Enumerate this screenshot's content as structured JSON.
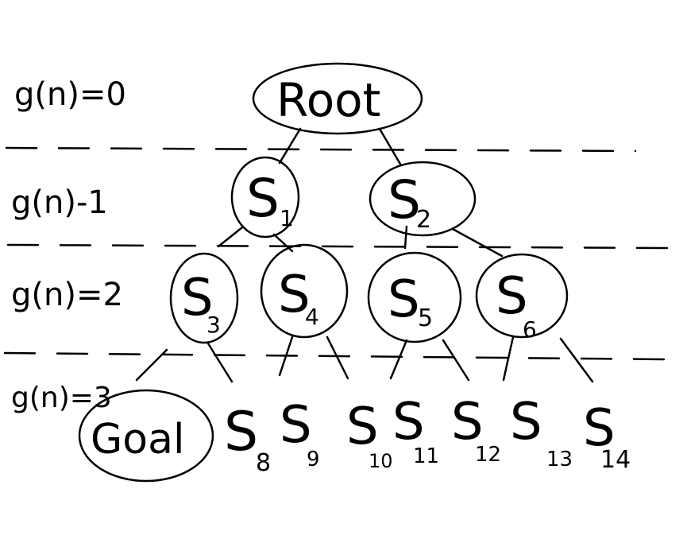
{
  "levels": [
    {
      "text": "g(n)=0"
    },
    {
      "text": "g(n)-1"
    },
    {
      "text": "g(n)=2"
    },
    {
      "text": "g(n)=3"
    }
  ],
  "nodes": {
    "root": {
      "label": "Root"
    },
    "s1": {
      "label": "S",
      "sub": "1"
    },
    "s2": {
      "label": "S",
      "sub": "2"
    },
    "s3": {
      "label": "S",
      "sub": "3"
    },
    "s4": {
      "label": "S",
      "sub": "4"
    },
    "s5": {
      "label": "S",
      "sub": "5"
    },
    "s6": {
      "label": "S",
      "sub": "6"
    },
    "goal": {
      "label": "Goal"
    },
    "s8": {
      "label": "S",
      "sub": "8"
    },
    "s9": {
      "label": "S",
      "sub": "9"
    },
    "s10": {
      "label": "S",
      "sub": "10"
    },
    "s11": {
      "label": "S",
      "sub": "11"
    },
    "s12": {
      "label": "S",
      "sub": "12"
    },
    "s13": {
      "label": "S",
      "sub": "13"
    },
    "s14": {
      "label": "S",
      "sub": "14"
    }
  }
}
